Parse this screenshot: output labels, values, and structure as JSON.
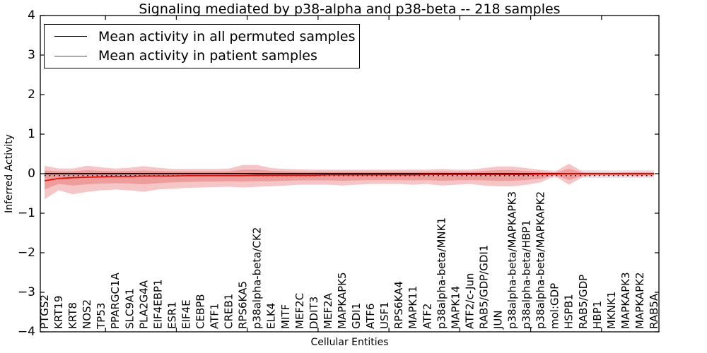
{
  "title": "Signaling mediated by p38-alpha and p38-beta -- 218 samples",
  "legend": {
    "entries": [
      {
        "label": "Mean activity in all permuted samples",
        "color": "#000000"
      },
      {
        "label": "Mean activity in patient samples",
        "color": "#ff0000"
      }
    ]
  },
  "chart_data": {
    "type": "line",
    "title": "Signaling mediated by p38-alpha and p38-beta -- 218 samples",
    "xlabel": "Cellular Entities",
    "ylabel": "Inferred Activity",
    "ylim": [
      -4,
      4
    ],
    "grid": false,
    "legend_position": "upper left",
    "ytick_labels": [
      "4",
      "3",
      "2",
      "1",
      "0",
      "−1",
      "−2",
      "−3",
      "−4"
    ],
    "ytick_values": [
      4,
      3,
      2,
      1,
      0,
      -1,
      -2,
      -3,
      -4
    ],
    "categories": [
      "PTGS2",
      "KRT19",
      "KRT8",
      "NOS2",
      "TP53",
      "PPARGC1A",
      "SLC9A1",
      "PLA2G4A",
      "EIF4EBP1",
      "ESR1",
      "EIF4E",
      "CEBPB",
      "ATF1",
      "CREB1",
      "RPS6KA5",
      "p38alpha-beta/CK2",
      "ELK4",
      "MITF",
      "MEF2C",
      "DDIT3",
      "MEF2A",
      "MAPKAPK5",
      "GDI1",
      "ATF6",
      "USF1",
      "RPS6KA4",
      "MAPK11",
      "ATF2",
      "p38alpha-beta/MNK1",
      "MAPK14",
      "ATF2/c-Jun",
      "RAB5/GDP/GDI1",
      "JUN",
      "p38alpha-beta/MAPKAPK3",
      "p38alpha-beta/HBP1",
      "p38alpha-beta/MAPKAPK2",
      "mol:GDP",
      "HSPB1",
      "RAB5/GDP",
      "HBP1",
      "MKNK1",
      "MAPKAPK3",
      "MAPKAPK2",
      "RAB5A"
    ],
    "series": [
      {
        "name": "Mean activity in all permuted samples",
        "color": "#000000",
        "style": "solid",
        "values": [
          0,
          0,
          0,
          0,
          0,
          0,
          0,
          0,
          0,
          0,
          0,
          0,
          0,
          0,
          0,
          0,
          0,
          0,
          0,
          0,
          0,
          0,
          0,
          0,
          0,
          0,
          0,
          0,
          0,
          0,
          0,
          0,
          0,
          0,
          0,
          0,
          0,
          0,
          0,
          0,
          0,
          0,
          0,
          0
        ]
      },
      {
        "name": "Mean activity in patient samples",
        "color": "#ff0000",
        "style": "solid",
        "values": [
          -0.18,
          -0.12,
          -0.1,
          -0.09,
          -0.08,
          -0.07,
          -0.07,
          -0.06,
          -0.06,
          -0.06,
          -0.05,
          -0.05,
          -0.05,
          -0.05,
          -0.05,
          -0.04,
          -0.04,
          -0.04,
          -0.04,
          -0.04,
          -0.03,
          -0.03,
          -0.03,
          -0.03,
          -0.03,
          -0.03,
          -0.03,
          -0.02,
          -0.02,
          -0.02,
          -0.02,
          -0.02,
          -0.02,
          -0.02,
          -0.02,
          -0.01,
          -0.01,
          0,
          0,
          0,
          0,
          0,
          0,
          0
        ]
      }
    ],
    "dotted_overlay": {
      "value": -0.05,
      "color": "#000000"
    },
    "bands": [
      {
        "name": "permuted-range-outer",
        "color": "#e9e9e9",
        "top": 0.09,
        "bottom": -0.11
      },
      {
        "name": "permuted-range-inner",
        "color": "#dcdcdc",
        "top": 0.05,
        "bottom": -0.065
      },
      {
        "name": "patient-range-outer",
        "color": "#f6c6c6",
        "top": [
          0.2,
          0.13,
          0.13,
          0.2,
          0.16,
          0.13,
          0.15,
          0.19,
          0.15,
          0.12,
          0.12,
          0.12,
          0.12,
          0.13,
          0.22,
          0.22,
          0.14,
          0.12,
          0.11,
          0.1,
          0.1,
          0.1,
          0.1,
          0.1,
          0.1,
          0.1,
          0.1,
          0.1,
          0.12,
          0.1,
          0.1,
          0.14,
          0.18,
          0.18,
          0.14,
          0.1,
          0.05,
          0.25,
          0.05,
          0.04,
          0.04,
          0.05,
          0.06,
          0.05
        ],
        "bottom": [
          -0.65,
          -0.42,
          -0.52,
          -0.46,
          -0.42,
          -0.4,
          -0.42,
          -0.46,
          -0.4,
          -0.38,
          -0.36,
          -0.35,
          -0.34,
          -0.33,
          -0.35,
          -0.33,
          -0.32,
          -0.3,
          -0.28,
          -0.28,
          -0.28,
          -0.3,
          -0.28,
          -0.26,
          -0.26,
          -0.26,
          -0.28,
          -0.26,
          -0.3,
          -0.28,
          -0.26,
          -0.3,
          -0.32,
          -0.32,
          -0.28,
          -0.22,
          -0.06,
          -0.28,
          -0.08,
          -0.06,
          -0.06,
          -0.06,
          -0.08,
          -0.06
        ]
      },
      {
        "name": "patient-range-inner",
        "color": "#ee9d9d",
        "top": [
          0.08,
          0.06,
          0.06,
          0.09,
          0.07,
          0.06,
          0.07,
          0.08,
          0.07,
          0.06,
          0.06,
          0.06,
          0.06,
          0.06,
          0.1,
          0.1,
          0.07,
          0.06,
          0.05,
          0.05,
          0.05,
          0.05,
          0.05,
          0.05,
          0.05,
          0.05,
          0.05,
          0.05,
          0.06,
          0.05,
          0.05,
          0.07,
          0.09,
          0.09,
          0.07,
          0.05,
          0.03,
          0.12,
          0.03,
          0.02,
          0.02,
          0.03,
          0.03,
          0.03
        ],
        "bottom": [
          -0.4,
          -0.26,
          -0.3,
          -0.27,
          -0.25,
          -0.24,
          -0.25,
          -0.27,
          -0.24,
          -0.22,
          -0.21,
          -0.2,
          -0.2,
          -0.19,
          -0.2,
          -0.19,
          -0.19,
          -0.18,
          -0.17,
          -0.17,
          -0.17,
          -0.18,
          -0.17,
          -0.16,
          -0.16,
          -0.16,
          -0.17,
          -0.16,
          -0.18,
          -0.17,
          -0.16,
          -0.17,
          -0.18,
          -0.18,
          -0.16,
          -0.13,
          -0.04,
          -0.16,
          -0.05,
          -0.04,
          -0.04,
          -0.04,
          -0.05,
          -0.04
        ]
      }
    ]
  }
}
